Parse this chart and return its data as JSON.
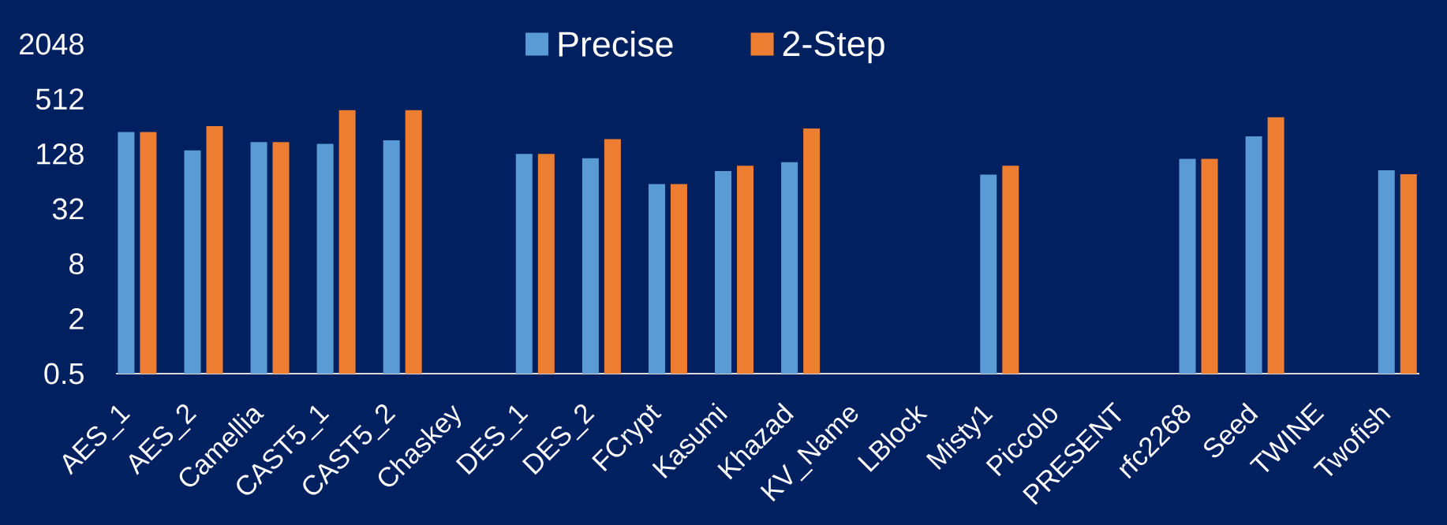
{
  "chart_data": {
    "type": "bar",
    "categories": [
      "AES_1",
      "AES_2",
      "Camellia",
      "CAST5_1",
      "CAST5_2",
      "Chaskey",
      "DES_1",
      "DES_2",
      "FCrypt",
      "Kasumi",
      "Khazad",
      "KV_Name",
      "LBlock",
      "Misty1",
      "Piccolo",
      "PRESENT",
      "rfc2268",
      "Seed",
      "TWINE",
      "Twofish"
    ],
    "series": [
      {
        "name": "Precise",
        "color": "#5b9bd5",
        "values": [
          223,
          140,
          173,
          165,
          181,
          null,
          128,
          115,
          60,
          83,
          104,
          null,
          null,
          76,
          null,
          null,
          113,
          200,
          null,
          85
        ]
      },
      {
        "name": "2-Step",
        "color": "#ed7d31",
        "values": [
          223,
          258,
          173,
          387,
          387,
          null,
          128,
          186,
          60,
          95,
          244,
          null,
          null,
          95,
          null,
          null,
          113,
          324,
          null,
          77
        ]
      }
    ],
    "log": "y",
    "ylim": [
      0.5,
      2048
    ],
    "yticks": [
      0.5,
      2,
      8,
      32,
      128,
      512,
      2048
    ],
    "legend": "top"
  }
}
